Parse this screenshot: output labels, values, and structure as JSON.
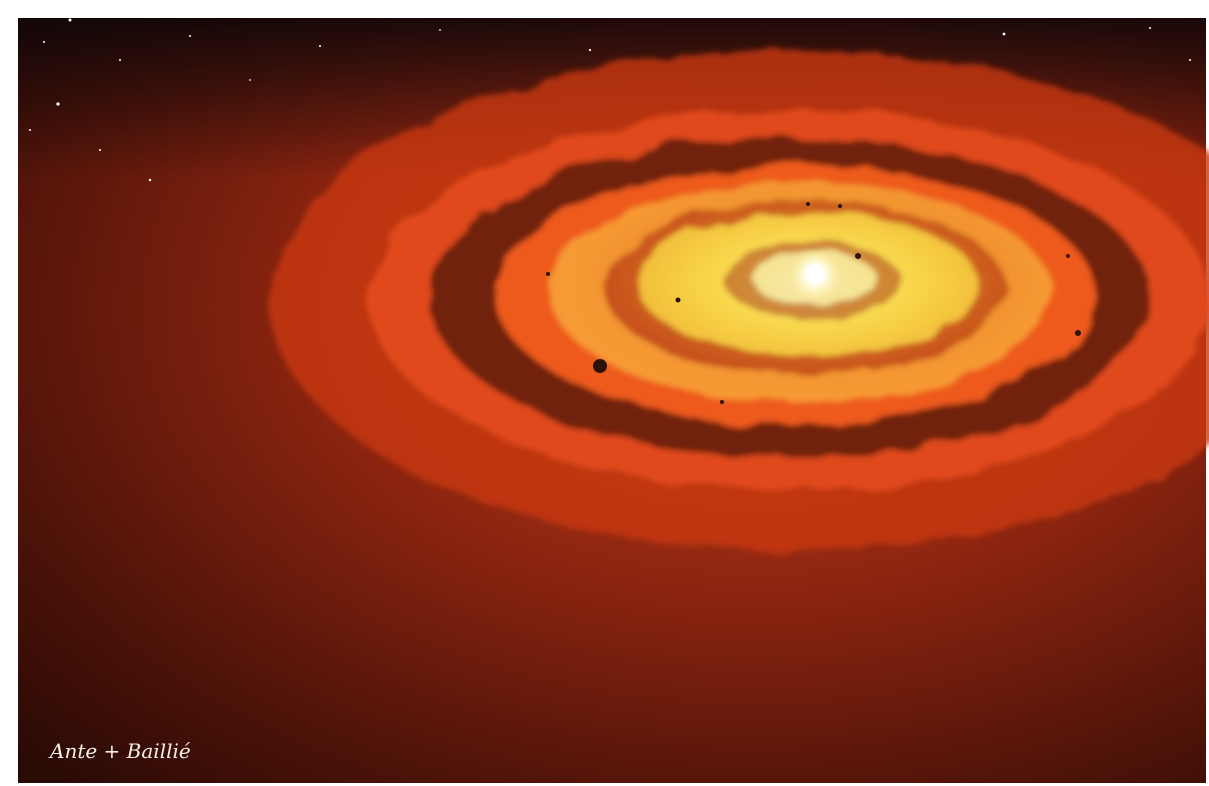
{
  "signature": "Ante + Baillié"
}
